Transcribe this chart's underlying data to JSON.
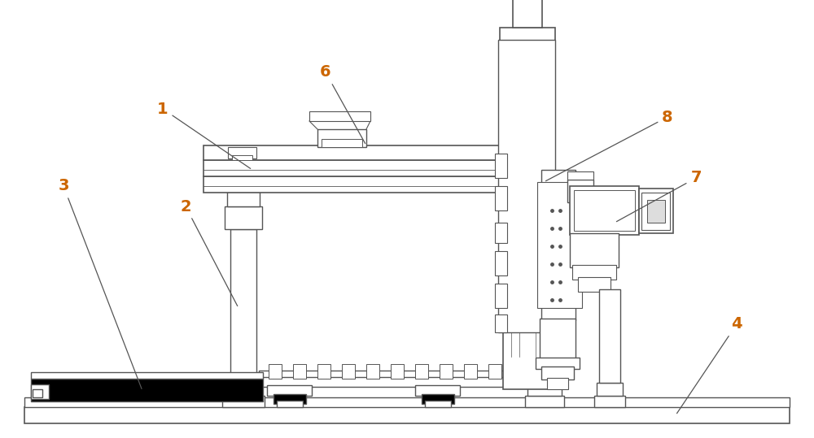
{
  "bg_color": "#ffffff",
  "line_color": "#555555",
  "dark_color": "#111111",
  "label_color": "#cc6600",
  "figsize": [
    10.0,
    5.39
  ],
  "dpi": 100
}
